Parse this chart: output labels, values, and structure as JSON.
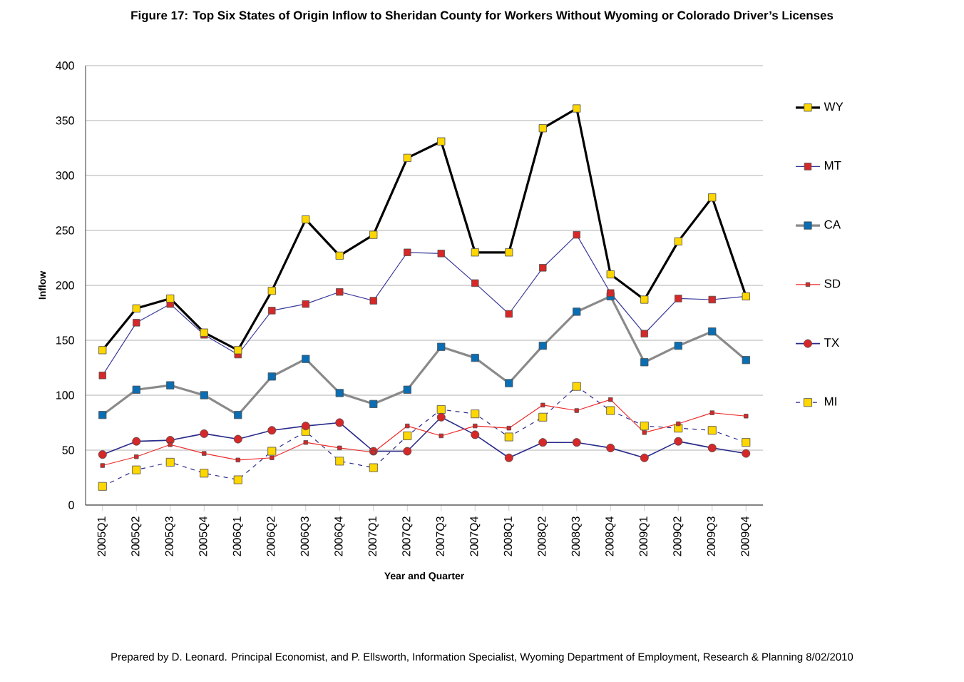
{
  "chart_data": {
    "type": "line",
    "title": "Figure 17: Top Six States of Origin Inflow to Sheridan County for Workers Without Wyoming or Colorado Driver’s Licenses",
    "xlabel": "Year and Quarter",
    "ylabel": "Inflow",
    "categories": [
      "2005Q1",
      "2005Q2",
      "2005Q3",
      "2005Q4",
      "2006Q1",
      "2006Q2",
      "2006Q3",
      "2006Q4",
      "2007Q1",
      "2007Q2",
      "2007Q3",
      "2007Q4",
      "2008Q1",
      "2008Q2",
      "2008Q3",
      "2008Q4",
      "2009Q1",
      "2009Q2",
      "2009Q3",
      "2009Q4"
    ],
    "series": [
      {
        "name": "WY",
        "color": "#000000",
        "marker": "square",
        "line_style": "solid",
        "values": [
          141,
          179,
          188,
          157,
          141,
          195,
          260,
          227,
          246,
          316,
          331,
          230,
          230,
          343,
          361,
          210,
          187,
          240,
          280,
          190
        ]
      },
      {
        "name": "MT",
        "color": "#3a3a9a",
        "marker": "square",
        "line_style": "solid",
        "values": [
          118,
          166,
          183,
          155,
          137,
          177,
          183,
          194,
          186,
          230,
          229,
          202,
          174,
          216,
          246,
          193,
          156,
          188,
          187,
          190
        ]
      },
      {
        "name": "CA",
        "color": "#8a8a8a",
        "marker": "square",
        "line_style": "solid",
        "values": [
          82,
          105,
          109,
          100,
          82,
          117,
          133,
          102,
          92,
          105,
          144,
          134,
          111,
          145,
          176,
          190,
          130,
          145,
          158,
          132
        ]
      },
      {
        "name": "SD",
        "color": "#ee2a2a",
        "marker": "square",
        "line_style": "solid",
        "values": [
          36,
          44,
          55,
          47,
          41,
          43,
          57,
          52,
          48,
          72,
          63,
          72,
          70,
          91,
          86,
          96,
          66,
          74,
          84,
          81
        ]
      },
      {
        "name": "TX",
        "color": "#2a2a8a",
        "marker": "circle",
        "line_style": "solid",
        "values": [
          46,
          58,
          59,
          65,
          60,
          68,
          72,
          75,
          49,
          49,
          80,
          64,
          43,
          57,
          57,
          52,
          43,
          58,
          52,
          47
        ]
      },
      {
        "name": "MI",
        "color": "#2a2a8a",
        "marker": "square",
        "line_style": "dashed",
        "values": [
          17,
          32,
          39,
          29,
          23,
          49,
          67,
          40,
          34,
          63,
          87,
          83,
          62,
          80,
          108,
          86,
          72,
          70,
          68,
          57
        ]
      }
    ],
    "ylim": [
      0,
      400
    ],
    "yticks": [
      0,
      50,
      100,
      150,
      200,
      250,
      300,
      350,
      400
    ],
    "grid": "y",
    "legend": "right",
    "annotations": [
      "Prepared by D. Leonard. Principal Economist, and P. Ellsworth, Information Specialist, Wyoming Department of Employment, Research & Planning 8/02/2010"
    ]
  }
}
